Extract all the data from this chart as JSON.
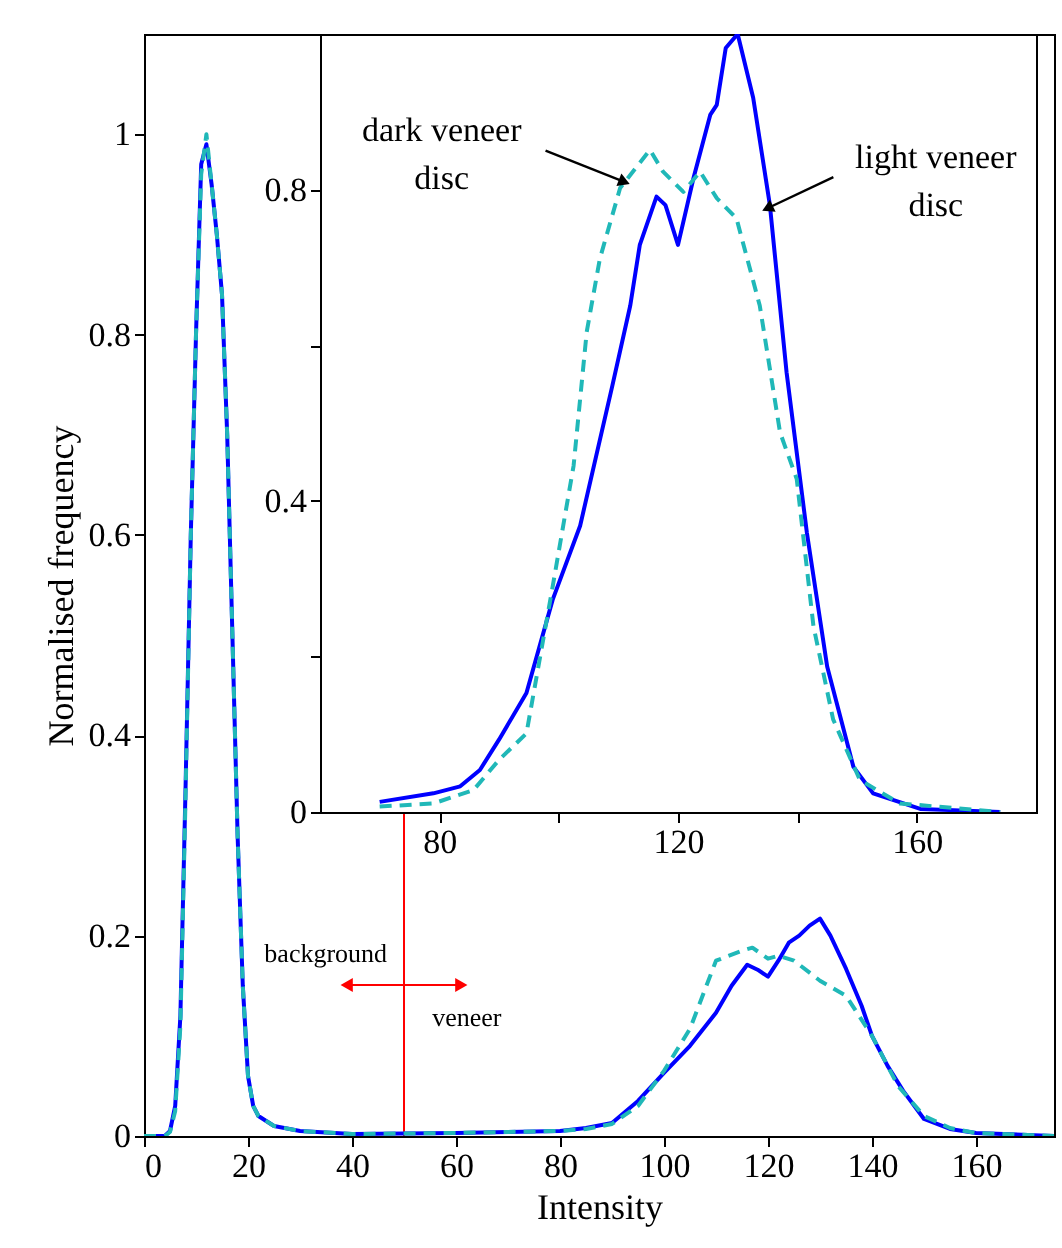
{
  "chart_data": [
    {
      "type": "line",
      "xlabel": "Intensity",
      "ylabel": "Normalised frequency",
      "xlim": [
        0,
        175
      ],
      "ylim": [
        0,
        1.1
      ],
      "xticks": [
        0,
        20,
        40,
        60,
        80,
        100,
        120,
        140,
        160
      ],
      "yticks": [
        0,
        0.2,
        0.4,
        0.6,
        0.8,
        1
      ],
      "series": [
        {
          "color": "#0000ff",
          "line_style": "solid",
          "x": [
            0,
            4,
            5,
            6,
            7,
            8,
            9,
            10,
            11,
            12,
            13,
            14,
            15,
            16,
            17,
            18,
            19,
            20,
            21,
            22,
            25,
            30,
            40,
            60,
            70,
            80,
            85,
            90,
            95,
            100,
            105,
            110,
            113,
            116,
            118,
            120,
            122,
            124,
            126,
            128,
            130,
            132,
            135,
            138,
            140,
            143,
            146,
            150,
            155,
            160,
            170,
            175
          ],
          "values": [
            0,
            0,
            0.005,
            0.03,
            0.12,
            0.35,
            0.6,
            0.8,
            0.97,
            0.99,
            0.95,
            0.9,
            0.84,
            0.7,
            0.5,
            0.3,
            0.15,
            0.06,
            0.03,
            0.02,
            0.01,
            0.005,
            0.002,
            0.003,
            0.004,
            0.005,
            0.008,
            0.013,
            0.035,
            0.063,
            0.09,
            0.123,
            0.15,
            0.171,
            0.166,
            0.159,
            0.175,
            0.193,
            0.2,
            0.21,
            0.217,
            0.2,
            0.167,
            0.13,
            0.1,
            0.07,
            0.045,
            0.017,
            0.007,
            0.003,
            0.001,
            0
          ]
        },
        {
          "color": "#20b8b8",
          "line_style": "dashed",
          "x": [
            0,
            4,
            5,
            6,
            7,
            8,
            9,
            10,
            11,
            12,
            13,
            14,
            15,
            16,
            17,
            18,
            19,
            20,
            21,
            22,
            25,
            30,
            40,
            60,
            70,
            80,
            85,
            90,
            95,
            100,
            105,
            110,
            115,
            117,
            120,
            122,
            125,
            128,
            130,
            135,
            140,
            145,
            150,
            155,
            160,
            170,
            175
          ],
          "values": [
            0,
            0,
            0.004,
            0.025,
            0.11,
            0.34,
            0.6,
            0.8,
            0.96,
            1.0,
            0.95,
            0.9,
            0.84,
            0.7,
            0.5,
            0.3,
            0.15,
            0.06,
            0.03,
            0.02,
            0.01,
            0.005,
            0.002,
            0.003,
            0.004,
            0.005,
            0.007,
            0.012,
            0.03,
            0.065,
            0.107,
            0.175,
            0.185,
            0.188,
            0.177,
            0.18,
            0.175,
            0.163,
            0.155,
            0.14,
            0.1,
            0.05,
            0.02,
            0.008,
            0.003,
            0.001,
            0
          ]
        }
      ],
      "ref_lines": [
        {
          "axis": "x",
          "value": 50,
          "color": "#ff0000"
        }
      ],
      "annotations": [
        "background",
        "veneer"
      ]
    },
    {
      "type": "line",
      "xlim": [
        60,
        180
      ],
      "ylim": [
        0,
        1
      ],
      "xticks": [
        80,
        {
          "value": 100,
          "label": null
        },
        120,
        {
          "value": 140,
          "label": null
        },
        160
      ],
      "yticks": [
        0,
        {
          "value": 0.2,
          "label": null
        },
        0.4,
        {
          "value": 0.6,
          "label": null
        },
        0.8
      ],
      "series": [
        {
          "color": "#0000ff",
          "line_style": "solid",
          "x": [
            70,
            79,
            83.5,
            86.8,
            90,
            94.6,
            99,
            103.6,
            109,
            112,
            113.6,
            116.4,
            117.9,
            120,
            122.6,
            125.4,
            126.5,
            128,
            130,
            132.6,
            135.4,
            138.2,
            141.6,
            145,
            149.4,
            152.7,
            160.6,
            174
          ],
          "values": [
            0.013,
            0.024,
            0.033,
            0.054,
            0.093,
            0.153,
            0.273,
            0.368,
            0.548,
            0.651,
            0.729,
            0.791,
            0.78,
            0.729,
            0.815,
            0.896,
            0.909,
            0.982,
            1.0,
            0.918,
            0.78,
            0.565,
            0.359,
            0.187,
            0.058,
            0.024,
            0.004,
            0
          ]
        },
        {
          "color": "#20b8b8",
          "line_style": "dashed",
          "x": [
            70,
            79,
            85.7,
            90,
            94.6,
            99,
            102.5,
            104.7,
            106.9,
            110.3,
            115.3,
            117.5,
            120.9,
            123.7,
            126.5,
            129.8,
            133.7,
            137.1,
            139.9,
            142.7,
            146,
            150.5,
            157.2,
            174
          ],
          "values": [
            0.007,
            0.011,
            0.028,
            0.067,
            0.101,
            0.29,
            0.445,
            0.617,
            0.711,
            0.802,
            0.851,
            0.823,
            0.797,
            0.823,
            0.789,
            0.763,
            0.651,
            0.488,
            0.428,
            0.239,
            0.119,
            0.041,
            0.011,
            0
          ]
        }
      ],
      "annotations": [
        {
          "text": "dark veneer disc",
          "x": 111,
          "y": 0.81
        },
        {
          "text": "light veneer disc",
          "x": 135,
          "y": 0.776
        }
      ]
    }
  ]
}
